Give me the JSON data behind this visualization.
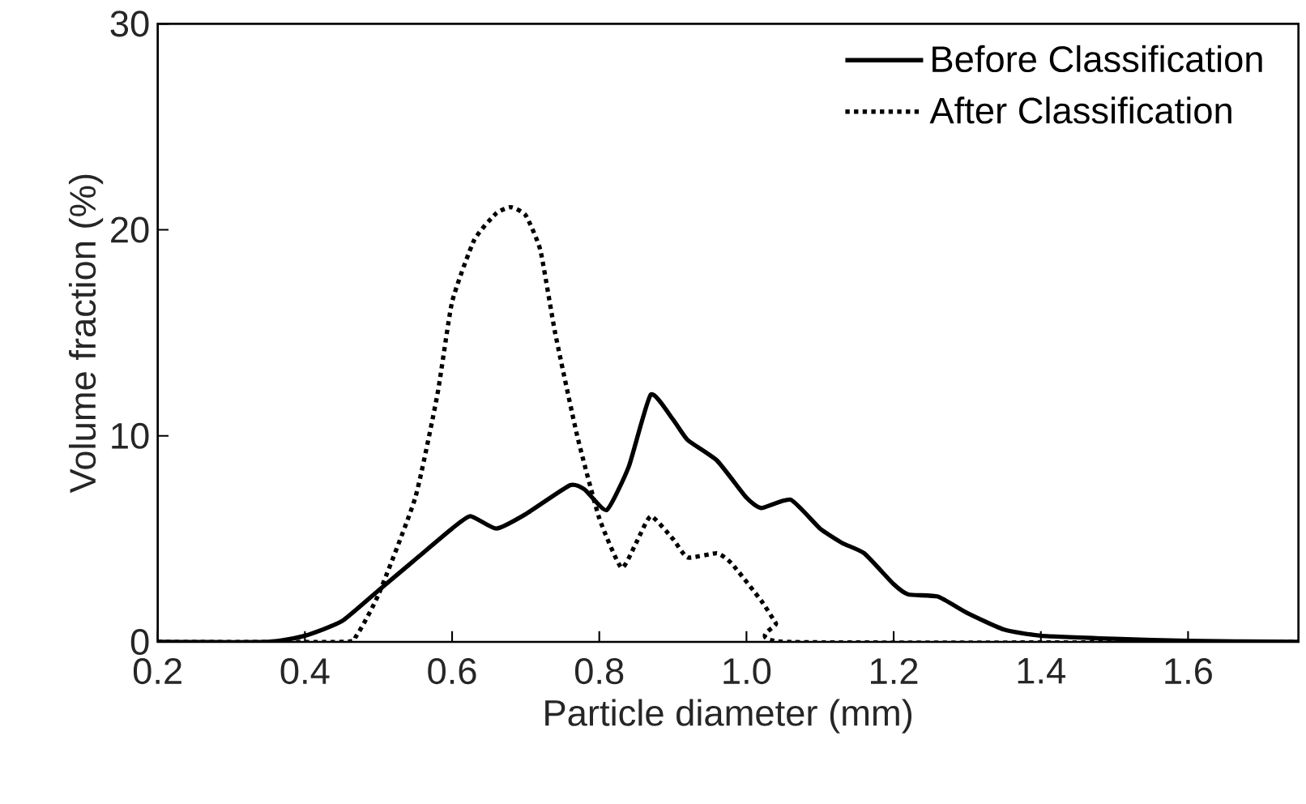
{
  "chart_data": {
    "type": "line",
    "xlabel": "Particle diameter (mm)",
    "ylabel": "Volume fraction (%)",
    "xlim": [
      0.2,
      1.75
    ],
    "ylim": [
      0,
      30
    ],
    "xticks": [
      {
        "value": 0.2,
        "label": "0.2"
      },
      {
        "value": 0.4,
        "label": "0.4"
      },
      {
        "value": 0.6,
        "label": "0.6"
      },
      {
        "value": 0.8,
        "label": "0.8"
      },
      {
        "value": 1.0,
        "label": "1.0"
      },
      {
        "value": 1.2,
        "label": "1.2"
      },
      {
        "value": 1.4,
        "label": "1.4"
      },
      {
        "value": 1.6,
        "label": "1.6"
      }
    ],
    "yticks": [
      0,
      10,
      20,
      30
    ],
    "grid": false,
    "legend": "top right",
    "marker": "none",
    "series": [
      {
        "name": "Before Classification",
        "color": "#000000",
        "line_style": "solid",
        "x": [
          0.2,
          0.35,
          0.4,
          0.45,
          0.5,
          0.55,
          0.6,
          0.625,
          0.66,
          0.7,
          0.76,
          0.78,
          0.81,
          0.84,
          0.87,
          0.9,
          0.92,
          0.96,
          1.0,
          1.02,
          1.06,
          1.1,
          1.13,
          1.16,
          1.2,
          1.22,
          1.26,
          1.3,
          1.35,
          1.4,
          1.5,
          1.6,
          1.75
        ],
        "values": [
          0,
          0,
          0.3,
          1.0,
          2.5,
          4.0,
          5.5,
          6.1,
          5.5,
          6.2,
          7.6,
          7.4,
          6.4,
          8.5,
          12.0,
          10.8,
          9.8,
          8.8,
          7.0,
          6.5,
          6.9,
          5.5,
          4.8,
          4.3,
          2.8,
          2.3,
          2.2,
          1.4,
          0.6,
          0.3,
          0.15,
          0.05,
          0
        ]
      },
      {
        "name": "After Classification",
        "color": "#000000",
        "line_style": "dotted",
        "x": [
          0.2,
          0.45,
          0.47,
          0.5,
          0.55,
          0.58,
          0.6,
          0.63,
          0.66,
          0.68,
          0.7,
          0.72,
          0.74,
          0.77,
          0.8,
          0.83,
          0.85,
          0.87,
          0.9,
          0.92,
          0.96,
          0.98,
          1.02,
          1.04,
          1.055,
          1.75
        ],
        "values": [
          0,
          0,
          0.3,
          2.3,
          7,
          12,
          16.5,
          19.5,
          20.8,
          21.1,
          20.7,
          19.0,
          15,
          10,
          6,
          3.6,
          4.8,
          6.1,
          5.0,
          4.1,
          4.3,
          3.8,
          2.0,
          0.9,
          0,
          0
        ]
      }
    ]
  }
}
